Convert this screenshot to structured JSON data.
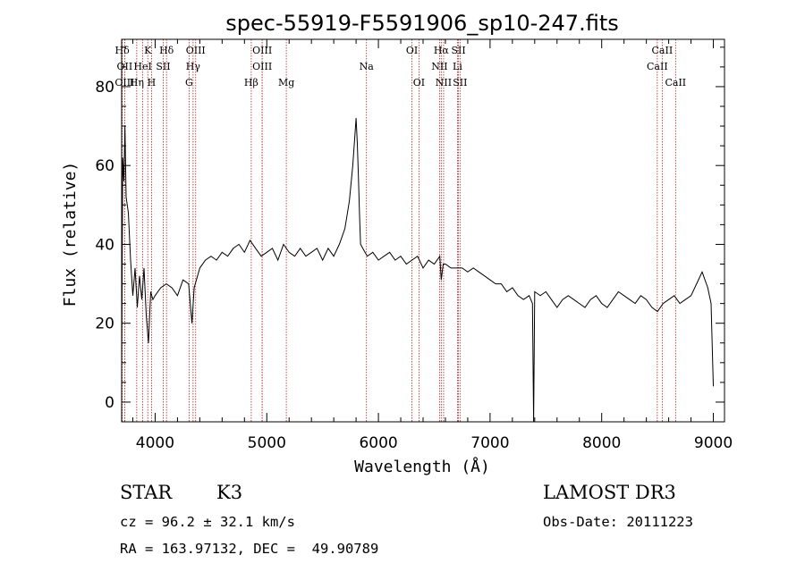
{
  "chart_data": {
    "type": "line",
    "title": "spec-55919-F5591906_sp10-247.fits",
    "xlabel": "Wavelength (Å)",
    "ylabel": "Flux (relative)",
    "xlim": [
      3700,
      9100
    ],
    "ylim": [
      -5,
      92
    ],
    "x_ticks": [
      4000,
      5000,
      6000,
      7000,
      8000,
      9000
    ],
    "y_ticks": [
      0,
      20,
      40,
      60,
      80
    ],
    "series": [
      {
        "name": "spectrum",
        "x": [
          3700,
          3710,
          3720,
          3730,
          3740,
          3760,
          3780,
          3800,
          3820,
          3840,
          3860,
          3880,
          3900,
          3920,
          3940,
          3960,
          3980,
          4000,
          4050,
          4100,
          4150,
          4200,
          4250,
          4300,
          4330,
          4350,
          4400,
          4450,
          4500,
          4550,
          4600,
          4650,
          4700,
          4750,
          4800,
          4850,
          4900,
          4950,
          5000,
          5050,
          5100,
          5150,
          5200,
          5250,
          5300,
          5350,
          5400,
          5450,
          5500,
          5550,
          5600,
          5650,
          5700,
          5740,
          5770,
          5790,
          5800,
          5810,
          5820,
          5830,
          5840,
          5860,
          5880,
          5900,
          5950,
          6000,
          6050,
          6100,
          6150,
          6200,
          6250,
          6300,
          6350,
          6400,
          6450,
          6500,
          6550,
          6563,
          6580,
          6600,
          6650,
          6700,
          6750,
          6800,
          6850,
          6900,
          6950,
          7000,
          7050,
          7100,
          7150,
          7200,
          7250,
          7300,
          7350,
          7380,
          7390,
          7400,
          7450,
          7500,
          7550,
          7600,
          7650,
          7700,
          7750,
          7800,
          7850,
          7900,
          7950,
          8000,
          8050,
          8100,
          8150,
          8200,
          8250,
          8300,
          8350,
          8400,
          8450,
          8500,
          8550,
          8600,
          8650,
          8700,
          8750,
          8800,
          8850,
          8900,
          8950,
          8980,
          9000
        ],
        "values": [
          10,
          62,
          56,
          70,
          52,
          48,
          36,
          27,
          34,
          24,
          32,
          26,
          34,
          22,
          15,
          28,
          26,
          27,
          29,
          30,
          29,
          27,
          31,
          30,
          20,
          29,
          34,
          36,
          37,
          36,
          38,
          37,
          39,
          40,
          38,
          41,
          39,
          37,
          38,
          39,
          36,
          40,
          38,
          37,
          39,
          37,
          38,
          39,
          36,
          39,
          37,
          40,
          44,
          51,
          60,
          68,
          72,
          66,
          58,
          48,
          40,
          39,
          38,
          37,
          38,
          36,
          37,
          38,
          36,
          37,
          35,
          36,
          37,
          34,
          36,
          35,
          37,
          31,
          35,
          35,
          34,
          34,
          34,
          33,
          34,
          33,
          32,
          31,
          30,
          30,
          28,
          29,
          27,
          26,
          27,
          25,
          -5,
          28,
          27,
          28,
          26,
          24,
          26,
          27,
          26,
          25,
          24,
          26,
          27,
          25,
          24,
          26,
          28,
          27,
          26,
          25,
          27,
          26,
          24,
          23,
          25,
          26,
          27,
          25,
          26,
          27,
          30,
          33,
          29,
          25,
          4
        ]
      }
    ],
    "emission_lines": [
      {
        "label": "Hδ",
        "x": 3705,
        "row": 0
      },
      {
        "label": "K",
        "x": 3934,
        "row": 0
      },
      {
        "label": "Hδ",
        "x": 4102,
        "row": 0
      },
      {
        "label": "OIII",
        "x": 4363,
        "row": 0
      },
      {
        "label": "OIII",
        "x": 4959,
        "row": 0
      },
      {
        "label": "OI",
        "x": 6300,
        "row": 0
      },
      {
        "label": "Hα",
        "x": 6563,
        "row": 0
      },
      {
        "label": "SII",
        "x": 6717,
        "row": 0
      },
      {
        "label": "CaII",
        "x": 8542,
        "row": 0
      },
      {
        "label": "OII",
        "x": 3727,
        "row": 1
      },
      {
        "label": "HeI",
        "x": 3889,
        "row": 1
      },
      {
        "label": "SII",
        "x": 4072,
        "row": 1
      },
      {
        "label": "Hγ",
        "x": 4340,
        "row": 1
      },
      {
        "label": "OIII",
        "x": 4959,
        "row": 1
      },
      {
        "label": "Na",
        "x": 5893,
        "row": 1
      },
      {
        "label": "NII",
        "x": 6548,
        "row": 1
      },
      {
        "label": "Li",
        "x": 6708,
        "row": 1
      },
      {
        "label": "CaII",
        "x": 8498,
        "row": 1
      },
      {
        "label": "OIII",
        "x": 3727,
        "row": 2
      },
      {
        "label": "Hη",
        "x": 3835,
        "row": 2
      },
      {
        "label": "H",
        "x": 3968,
        "row": 2
      },
      {
        "label": "G",
        "x": 4304,
        "row": 2
      },
      {
        "label": "Hβ",
        "x": 4861,
        "row": 2
      },
      {
        "label": "Mg",
        "x": 5175,
        "row": 2
      },
      {
        "label": "OI",
        "x": 6363,
        "row": 2
      },
      {
        "label": "NII",
        "x": 6584,
        "row": 2
      },
      {
        "label": "SII",
        "x": 6731,
        "row": 2
      },
      {
        "label": "CaII",
        "x": 8662,
        "row": 2
      }
    ]
  },
  "info": {
    "class": "STAR",
    "subclass": "K3",
    "survey": "LAMOST DR3",
    "cz": "cz = 96.2 ± 32.1 km/s",
    "obs_date": "Obs-Date: 20111223",
    "coords": "RA = 163.97132, DEC =  49.90789"
  },
  "colors": {
    "line_marker": "#b22222",
    "spectrum": "#000000"
  }
}
